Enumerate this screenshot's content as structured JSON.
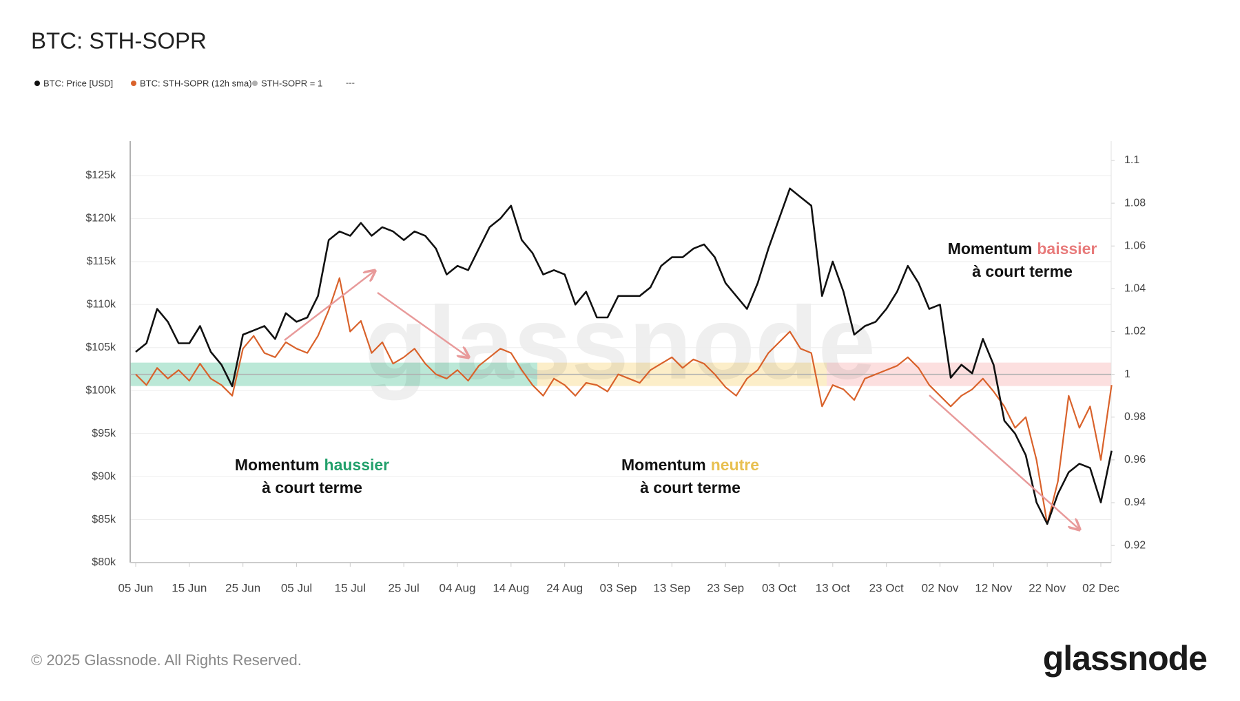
{
  "chart_data": {
    "type": "line",
    "title": "BTC: STH-SOPR",
    "categories": [
      "05 Jun",
      null,
      null,
      null,
      null,
      "15 Jun",
      null,
      null,
      null,
      null,
      "25 Jun",
      null,
      null,
      null,
      null,
      "05 Jul",
      null,
      null,
      null,
      null,
      "15 Jul",
      null,
      null,
      null,
      null,
      "25 Jul",
      null,
      null,
      null,
      null,
      "04 Aug",
      null,
      null,
      null,
      null,
      "14 Aug",
      null,
      null,
      null,
      null,
      "24 Aug",
      null,
      null,
      null,
      null,
      "03 Sep",
      null,
      null,
      null,
      null,
      "13 Sep",
      null,
      null,
      null,
      null,
      "23 Sep",
      null,
      null,
      null,
      null,
      "03 Oct",
      null,
      null,
      null,
      null,
      "13 Oct",
      null,
      null,
      null,
      null,
      "23 Oct",
      null,
      null,
      null,
      null,
      "02 Nov",
      null,
      null,
      null,
      null,
      "12 Nov",
      null,
      null,
      null,
      null,
      "22 Nov",
      null,
      null,
      null,
      null,
      "02 Dec",
      null
    ],
    "series": [
      {
        "name": "BTC: Price [USD]",
        "color": "#111111",
        "axis": "y",
        "values": [
          104500,
          105500,
          109500,
          108000,
          105500,
          105500,
          107500,
          104500,
          103000,
          100500,
          106500,
          107000,
          107500,
          106000,
          109000,
          108000,
          108500,
          111000,
          117500,
          118500,
          118000,
          119500,
          118000,
          119000,
          118500,
          117500,
          118500,
          118000,
          116500,
          113500,
          114500,
          114000,
          116500,
          119000,
          120000,
          121500,
          117500,
          116000,
          113500,
          114000,
          113500,
          110000,
          111500,
          108500,
          108500,
          111000,
          111000,
          111000,
          112000,
          114500,
          115500,
          115500,
          116500,
          117000,
          115500,
          112500,
          111000,
          109500,
          112500,
          116500,
          120000,
          123500,
          122500,
          121500,
          111000,
          115000,
          111500,
          106500,
          107500,
          108000,
          109500,
          111500,
          114500,
          112500,
          109500,
          110000,
          101500,
          103000,
          102000,
          106000,
          103000,
          96500,
          95000,
          92500,
          87000,
          84500,
          88000,
          90500,
          91500,
          91000,
          87000,
          93000
        ]
      },
      {
        "name": "BTC: STH-SOPR (12h sma)",
        "color": "#d9622b",
        "axis": "y2",
        "values": [
          1.0,
          0.995,
          1.003,
          0.998,
          1.002,
          0.997,
          1.005,
          0.998,
          0.995,
          0.99,
          1.012,
          1.018,
          1.01,
          1.008,
          1.015,
          1.012,
          1.01,
          1.018,
          1.03,
          1.045,
          1.02,
          1.025,
          1.01,
          1.015,
          1.005,
          1.008,
          1.012,
          1.005,
          1.0,
          0.998,
          1.002,
          0.997,
          1.004,
          1.008,
          1.012,
          1.01,
          1.002,
          0.995,
          0.99,
          0.998,
          0.995,
          0.99,
          0.996,
          0.995,
          0.992,
          1.0,
          0.998,
          0.996,
          1.002,
          1.005,
          1.008,
          1.003,
          1.007,
          1.005,
          1.0,
          0.994,
          0.99,
          0.998,
          1.002,
          1.01,
          1.015,
          1.02,
          1.012,
          1.01,
          0.985,
          0.995,
          0.993,
          0.988,
          0.998,
          1.0,
          1.002,
          1.004,
          1.008,
          1.003,
          0.995,
          0.99,
          0.985,
          0.99,
          0.993,
          0.998,
          0.992,
          0.985,
          0.975,
          0.98,
          0.96,
          0.93,
          0.95,
          0.99,
          0.975,
          0.985,
          0.96,
          0.995
        ]
      }
    ],
    "reference_line": {
      "name": "STH-SOPR = 1",
      "value": 1,
      "axis": "y2",
      "color": "#b0b0b0"
    },
    "legend_extra": "---",
    "ylim": [
      80000,
      129000
    ],
    "yticks": [
      {
        "value": 80000,
        "label": "$80k"
      },
      {
        "value": 85000,
        "label": "$85k"
      },
      {
        "value": 90000,
        "label": "$90k"
      },
      {
        "value": 95000,
        "label": "$95k"
      },
      {
        "value": 100000,
        "label": "$100k"
      },
      {
        "value": 105000,
        "label": "$105k"
      },
      {
        "value": 110000,
        "label": "$110k"
      },
      {
        "value": 115000,
        "label": "$115k"
      },
      {
        "value": 120000,
        "label": "$120k"
      },
      {
        "value": 125000,
        "label": "$125k"
      }
    ],
    "y2lim": [
      0.912,
      1.109
    ],
    "y2ticks": [
      0.92,
      0.94,
      0.96,
      0.98,
      1,
      1.02,
      1.04,
      1.06,
      1.08,
      1.1
    ],
    "grid": true,
    "legend": "top-left",
    "annotations": [
      {
        "word": "Momentum",
        "highlight": "haussier",
        "line2": "à court terme",
        "color": "#22a06b"
      },
      {
        "word": "Momentum",
        "highlight": "neutre",
        "line2": "à court terme",
        "color": "#e8c050"
      },
      {
        "word": "Momentum",
        "highlight": "baissier",
        "line2": "à court terme",
        "color": "#e87b7b"
      }
    ],
    "watermark": "glassnode",
    "footer": "© 2025 Glassnode. All Rights Reserved.",
    "logo": "glassnode"
  }
}
